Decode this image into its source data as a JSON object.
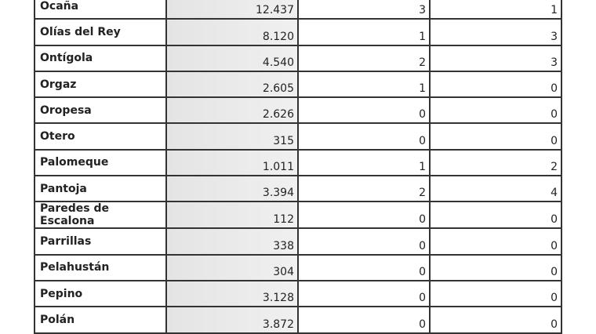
{
  "rows": [
    {
      "name": "Ocaña",
      "population": "12.437",
      "a": "3",
      "b": "1"
    },
    {
      "name": "Olías del Rey",
      "population": "8.120",
      "a": "1",
      "b": "3"
    },
    {
      "name": "Ontígola",
      "population": "4.540",
      "a": "2",
      "b": "3"
    },
    {
      "name": "Orgaz",
      "population": "2.605",
      "a": "1",
      "b": "0"
    },
    {
      "name": "Oropesa",
      "population": "2.626",
      "a": "0",
      "b": "0"
    },
    {
      "name": "Otero",
      "population": "315",
      "a": "0",
      "b": "0"
    },
    {
      "name": "Palomeque",
      "population": "1.011",
      "a": "1",
      "b": "2"
    },
    {
      "name": "Pantoja",
      "population": "3.394",
      "a": "2",
      "b": "4"
    },
    {
      "name": "Paredes de Escalona",
      "population": "112",
      "a": "0",
      "b": "0"
    },
    {
      "name": "Parrillas",
      "population": "338",
      "a": "0",
      "b": "0"
    },
    {
      "name": "Pelahustán",
      "population": "304",
      "a": "0",
      "b": "0"
    },
    {
      "name": "Pepino",
      "population": "3.128",
      "a": "0",
      "b": "0"
    },
    {
      "name": "Polán",
      "population": "3.872",
      "a": "0",
      "b": "0"
    }
  ]
}
